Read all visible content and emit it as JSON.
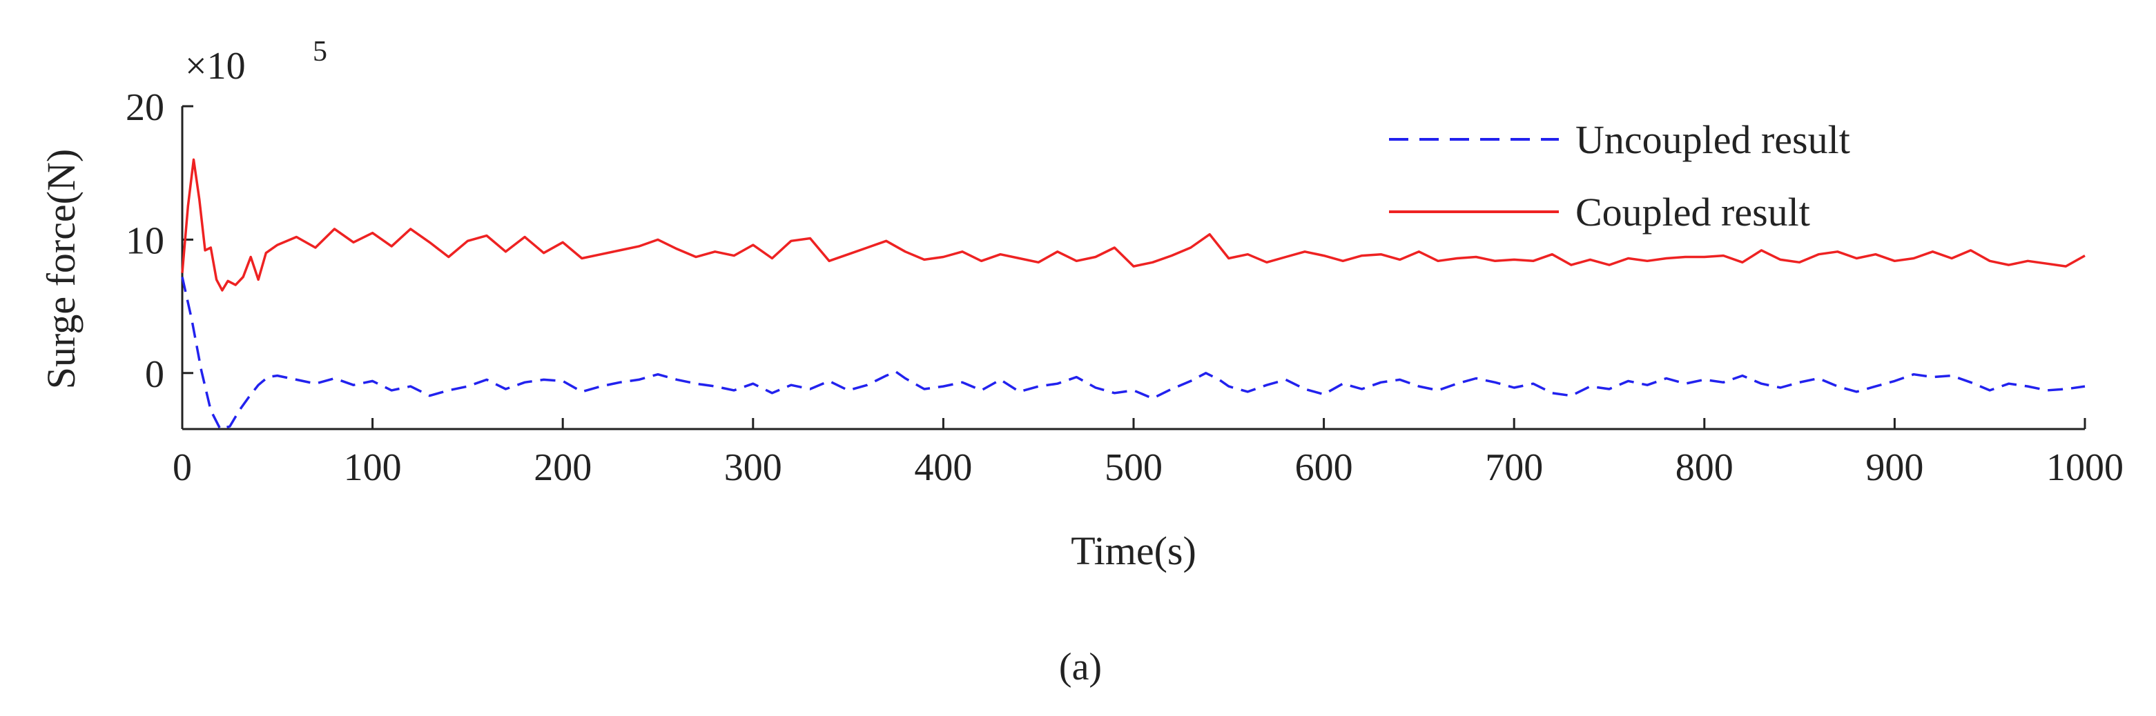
{
  "chart_data": {
    "type": "line",
    "title": "",
    "xlabel": "Time(s)",
    "ylabel": "Surge force(N)",
    "y_exponent_base": "×10",
    "y_exponent_power": "5",
    "xlim": [
      0,
      1000
    ],
    "ylim": [
      -4.2,
      20
    ],
    "xticks": [
      0,
      100,
      200,
      300,
      400,
      500,
      600,
      700,
      800,
      900,
      1000
    ],
    "yticks": [
      0,
      10,
      20
    ],
    "xtick_labels": [
      "0",
      "100",
      "200",
      "300",
      "400",
      "500",
      "600",
      "700",
      "800",
      "900",
      "1000"
    ],
    "ytick_labels": [
      "0",
      "10",
      "20"
    ],
    "grid": false,
    "legend_position": "top-right",
    "series": [
      {
        "name": "Uncoupled result",
        "color": "#2222ee",
        "style": "dashed",
        "x": [
          0,
          5,
          10,
          15,
          20,
          25,
          30,
          35,
          40,
          45,
          50,
          60,
          70,
          80,
          90,
          100,
          110,
          120,
          130,
          140,
          150,
          160,
          170,
          180,
          190,
          200,
          210,
          220,
          230,
          240,
          250,
          260,
          270,
          280,
          290,
          300,
          310,
          320,
          330,
          340,
          350,
          360,
          370,
          375,
          380,
          390,
          400,
          410,
          420,
          430,
          440,
          450,
          460,
          470,
          480,
          490,
          500,
          510,
          520,
          530,
          538,
          545,
          550,
          560,
          570,
          580,
          590,
          600,
          610,
          620,
          630,
          640,
          650,
          660,
          670,
          680,
          690,
          700,
          710,
          720,
          730,
          740,
          750,
          760,
          770,
          780,
          790,
          800,
          810,
          820,
          830,
          840,
          850,
          860,
          870,
          880,
          890,
          900,
          910,
          920,
          930,
          940,
          950,
          960,
          970,
          980,
          990,
          1000
        ],
        "values": [
          7.2,
          4.0,
          0.2,
          -2.8,
          -4.2,
          -4.0,
          -2.8,
          -1.8,
          -0.9,
          -0.3,
          -0.2,
          -0.5,
          -0.8,
          -0.4,
          -0.9,
          -0.6,
          -1.3,
          -1.0,
          -1.7,
          -1.3,
          -1.0,
          -0.5,
          -1.2,
          -0.7,
          -0.5,
          -0.6,
          -1.4,
          -1.0,
          -0.7,
          -0.5,
          -0.1,
          -0.5,
          -0.8,
          -1.0,
          -1.3,
          -0.8,
          -1.5,
          -0.9,
          -1.2,
          -0.6,
          -1.3,
          -0.9,
          -0.2,
          0.1,
          -0.4,
          -1.2,
          -1.0,
          -0.7,
          -1.3,
          -0.5,
          -1.4,
          -1.0,
          -0.8,
          -0.3,
          -1.1,
          -1.5,
          -1.3,
          -1.9,
          -1.2,
          -0.6,
          0.0,
          -0.5,
          -1.0,
          -1.4,
          -0.9,
          -0.5,
          -1.2,
          -1.6,
          -0.8,
          -1.2,
          -0.7,
          -0.5,
          -1.0,
          -1.3,
          -0.8,
          -0.4,
          -0.7,
          -1.1,
          -0.8,
          -1.5,
          -1.7,
          -1.0,
          -1.2,
          -0.6,
          -0.9,
          -0.4,
          -0.8,
          -0.5,
          -0.7,
          -0.2,
          -0.8,
          -1.1,
          -0.7,
          -0.4,
          -1.0,
          -1.4,
          -1.0,
          -0.6,
          -0.1,
          -0.3,
          -0.2,
          -0.7,
          -1.3,
          -0.8,
          -1.0,
          -1.3,
          -1.2,
          -1.0
        ]
      },
      {
        "name": "Coupled result",
        "color": "#ee2222",
        "style": "solid",
        "x": [
          0,
          3,
          6,
          9,
          12,
          15,
          18,
          21,
          24,
          28,
          32,
          36,
          40,
          44,
          50,
          60,
          70,
          80,
          90,
          100,
          110,
          120,
          130,
          140,
          150,
          160,
          170,
          180,
          190,
          200,
          210,
          220,
          230,
          240,
          250,
          260,
          270,
          280,
          290,
          300,
          310,
          320,
          330,
          340,
          350,
          360,
          370,
          380,
          390,
          400,
          410,
          420,
          430,
          440,
          450,
          460,
          470,
          480,
          490,
          500,
          510,
          520,
          530,
          540,
          550,
          560,
          570,
          580,
          590,
          600,
          610,
          620,
          630,
          640,
          650,
          660,
          670,
          680,
          690,
          700,
          710,
          720,
          730,
          740,
          750,
          760,
          770,
          780,
          790,
          800,
          810,
          820,
          830,
          840,
          850,
          860,
          870,
          880,
          890,
          900,
          910,
          920,
          930,
          940,
          950,
          960,
          970,
          980,
          990,
          1000
        ],
        "values": [
          7.5,
          12.5,
          16.0,
          13.0,
          9.2,
          9.4,
          7.0,
          6.2,
          6.9,
          6.6,
          7.2,
          8.7,
          7.0,
          9.0,
          9.6,
          10.2,
          9.4,
          10.8,
          9.8,
          10.5,
          9.5,
          10.8,
          9.8,
          8.7,
          9.9,
          10.3,
          9.1,
          10.2,
          9.0,
          9.8,
          8.6,
          8.9,
          9.2,
          9.5,
          10.0,
          9.3,
          8.7,
          9.1,
          8.8,
          9.6,
          8.6,
          9.9,
          10.1,
          8.4,
          8.9,
          9.4,
          9.9,
          9.1,
          8.5,
          8.7,
          9.1,
          8.4,
          8.9,
          8.6,
          8.3,
          9.1,
          8.4,
          8.7,
          9.4,
          8.0,
          8.3,
          8.8,
          9.4,
          10.4,
          8.6,
          8.9,
          8.3,
          8.7,
          9.1,
          8.8,
          8.4,
          8.8,
          8.9,
          8.5,
          9.1,
          8.4,
          8.6,
          8.7,
          8.4,
          8.5,
          8.4,
          8.9,
          8.1,
          8.5,
          8.1,
          8.6,
          8.4,
          8.6,
          8.7,
          8.7,
          8.8,
          8.3,
          9.2,
          8.5,
          8.3,
          8.9,
          9.1,
          8.6,
          8.9,
          8.4,
          8.6,
          9.1,
          8.6,
          9.2,
          8.4,
          8.1,
          8.4,
          8.2,
          8.0,
          8.8
        ]
      }
    ],
    "panel_label": "(a)"
  }
}
